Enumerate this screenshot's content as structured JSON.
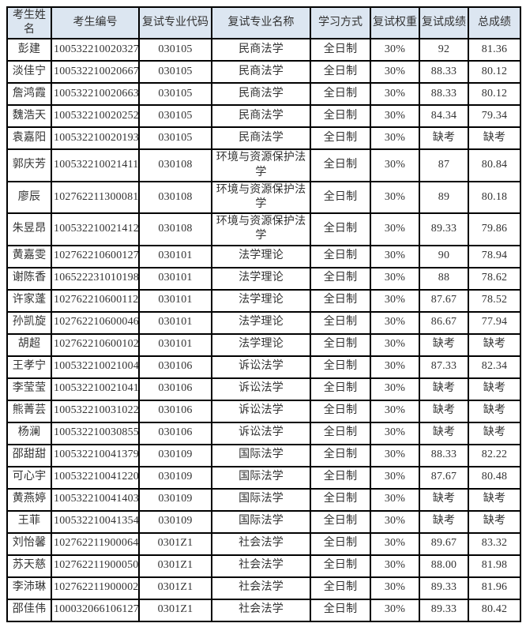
{
  "table": {
    "headers": [
      "考生姓名",
      "考生编号",
      "复试专业代码",
      "复试专业名称",
      "学习方式",
      "复试权重",
      "复试成绩",
      "总成绩"
    ],
    "rows": [
      [
        "彭建",
        "100532210020327",
        "030105",
        "民商法学",
        "全日制",
        "30%",
        "92",
        "81.36"
      ],
      [
        "淡佳宁",
        "100532210020667",
        "030105",
        "民商法学",
        "全日制",
        "30%",
        "88.33",
        "80.12"
      ],
      [
        "詹鸿霞",
        "100532210020663",
        "030105",
        "民商法学",
        "全日制",
        "30%",
        "88.33",
        "80.12"
      ],
      [
        "魏浩天",
        "100532210020252",
        "030105",
        "民商法学",
        "全日制",
        "30%",
        "84.34",
        "79.34"
      ],
      [
        "袁嘉阳",
        "100532210020193",
        "030105",
        "民商法学",
        "全日制",
        "30%",
        "缺考",
        "缺考"
      ],
      [
        "郭庆芳",
        "100532210021411",
        "030108",
        "环境与资源保护法学",
        "全日制",
        "30%",
        "87",
        "80.84"
      ],
      [
        "廖辰",
        "102762211300081",
        "030108",
        "环境与资源保护法学",
        "全日制",
        "30%",
        "89",
        "80.18"
      ],
      [
        "朱昱昂",
        "100532210021412",
        "030108",
        "环境与资源保护法学",
        "全日制",
        "30%",
        "89.33",
        "79.86"
      ],
      [
        "黄嘉雯",
        "102762210600127",
        "030101",
        "法学理论",
        "全日制",
        "30%",
        "90",
        "78.94"
      ],
      [
        "谢陈香",
        "106522231010198",
        "030101",
        "法学理论",
        "全日制",
        "30%",
        "88",
        "78.62"
      ],
      [
        "许家蓬",
        "102762210600112",
        "030101",
        "法学理论",
        "全日制",
        "30%",
        "87.67",
        "78.52"
      ],
      [
        "孙凯旋",
        "102762210600046",
        "030101",
        "法学理论",
        "全日制",
        "30%",
        "86.67",
        "77.94"
      ],
      [
        "胡超",
        "102762210600102",
        "030101",
        "法学理论",
        "全日制",
        "30%",
        "缺考",
        "缺考"
      ],
      [
        "王孝宁",
        "100532210021004",
        "030106",
        "诉讼法学",
        "全日制",
        "30%",
        "87.33",
        "82.34"
      ],
      [
        "李莹莹",
        "100532210021041",
        "030106",
        "诉讼法学",
        "全日制",
        "30%",
        "缺考",
        "缺考"
      ],
      [
        "熊菁芸",
        "100532210031022",
        "030106",
        "诉讼法学",
        "全日制",
        "30%",
        "缺考",
        "缺考"
      ],
      [
        "杨澜",
        "100532210030855",
        "030106",
        "诉讼法学",
        "全日制",
        "30%",
        "缺考",
        "缺考"
      ],
      [
        "邵甜甜",
        "100532210041379",
        "030109",
        "国际法学",
        "全日制",
        "30%",
        "88.33",
        "82.22"
      ],
      [
        "可心宇",
        "100532210041220",
        "030109",
        "国际法学",
        "全日制",
        "30%",
        "87.67",
        "80.48"
      ],
      [
        "黄燕婷",
        "100532210041403",
        "030109",
        "国际法学",
        "全日制",
        "30%",
        "缺考",
        "缺考"
      ],
      [
        "王菲",
        "100532210041354",
        "030109",
        "国际法学",
        "全日制",
        "30%",
        "缺考",
        "缺考"
      ],
      [
        "刘怡馨",
        "102762211900064",
        "0301Z1",
        "社会法学",
        "全日制",
        "30%",
        "89.67",
        "83.32"
      ],
      [
        "苏天慈",
        "102762211900050",
        "0301Z1",
        "社会法学",
        "全日制",
        "30%",
        "88.00",
        "81.98"
      ],
      [
        "李沛琳",
        "102762211900002",
        "0301Z1",
        "社会法学",
        "全日制",
        "30%",
        "89.33",
        "81.96"
      ],
      [
        "邵佳伟",
        "100032066106127",
        "0301Z1",
        "社会法学",
        "全日制",
        "30%",
        "89.33",
        "80.42"
      ]
    ],
    "colors": {
      "header_bg": "#dce6f1",
      "border": "#000000",
      "text": "#333333",
      "row_bg": "#ffffff"
    }
  }
}
